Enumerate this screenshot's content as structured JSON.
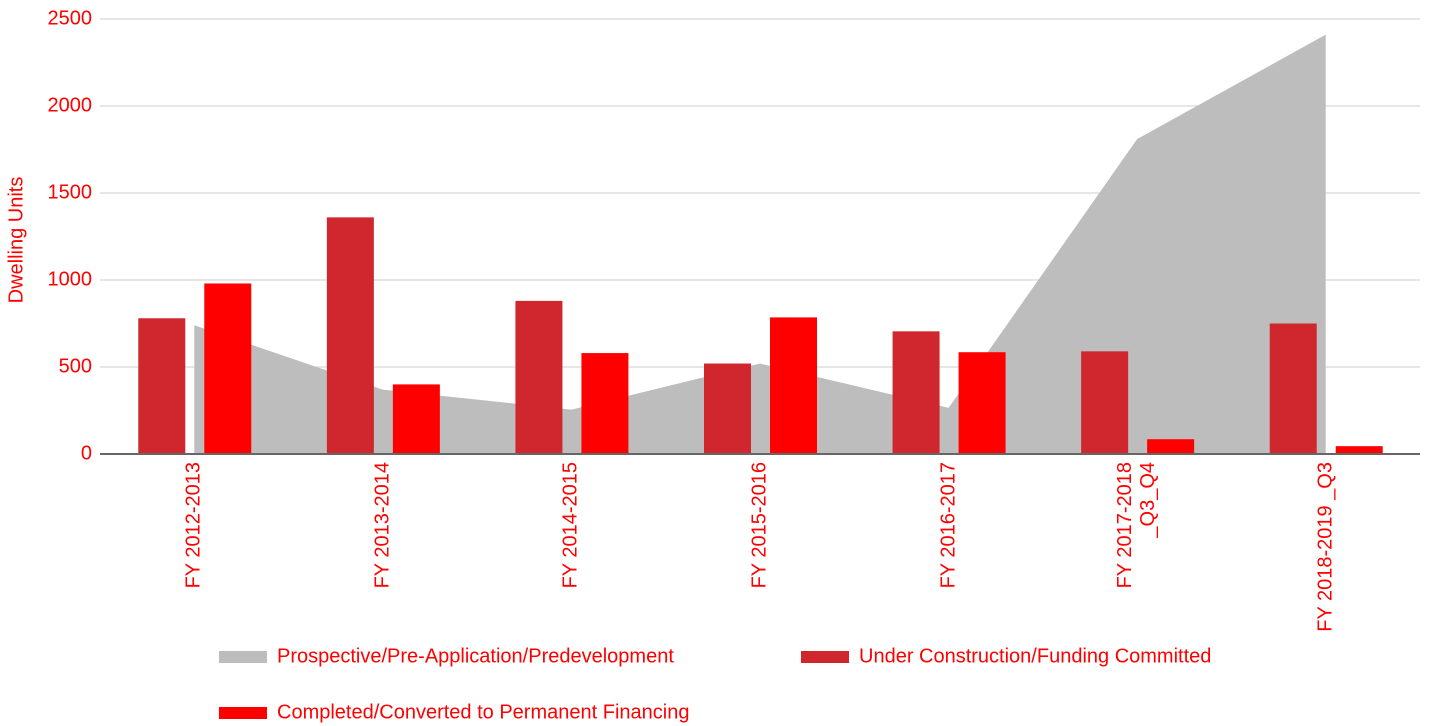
{
  "chart_data": {
    "type": "bar",
    "y_label": "Dwelling Units",
    "categories": [
      "FY 2012-2013",
      "FY 2013-2014",
      "FY 2014-2015",
      "FY 2015-2016",
      "FY 2016-2017",
      "FY 2017-2018 _Q3_Q4",
      "FY 2018-2019 _Q3"
    ],
    "series": [
      {
        "name": "Prospective/Pre-Application/Predevelopment",
        "color": "#bdbdbd",
        "kind": "area",
        "values": [
          740,
          370,
          255,
          520,
          265,
          1810,
          2410
        ]
      },
      {
        "name": "Under Construction/Funding Committed",
        "color": "#d0262d",
        "kind": "bar",
        "values": [
          780,
          1360,
          880,
          520,
          705,
          590,
          750
        ]
      },
      {
        "name": "Completed/Converted to Permanent Financing",
        "color": "#ff0000",
        "kind": "bar",
        "values": [
          980,
          400,
          580,
          785,
          585,
          85,
          45
        ]
      }
    ],
    "ylim": [
      0,
      2500
    ],
    "yticks": [
      0,
      500,
      1000,
      1500,
      2000,
      2500
    ],
    "grid": true
  }
}
